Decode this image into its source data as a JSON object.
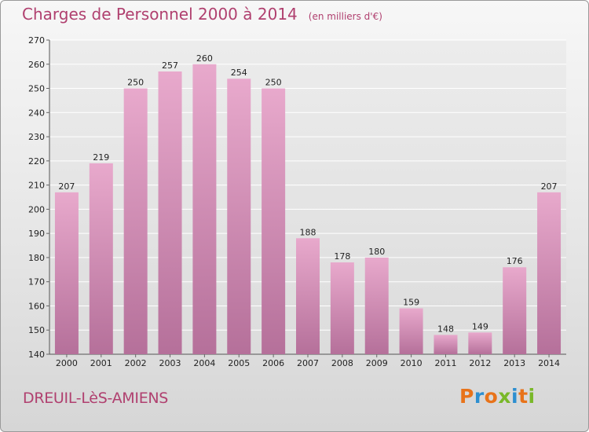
{
  "header": {
    "title": "Charges de Personnel 2000 à 2014",
    "subtitle": "(en milliers d'€)"
  },
  "footer": {
    "commune": "DREUIL-LèS-AMIENS",
    "logo_text": "Proxiti"
  },
  "chart_data": {
    "type": "bar",
    "title": "Charges de Personnel 2000 à 2014",
    "subtitle": "(en milliers d'€)",
    "categories": [
      "2000",
      "2001",
      "2002",
      "2003",
      "2004",
      "2005",
      "2006",
      "2007",
      "2008",
      "2009",
      "2010",
      "2011",
      "2012",
      "2013",
      "2014"
    ],
    "values": [
      207,
      219,
      250,
      257,
      260,
      254,
      250,
      188,
      178,
      180,
      159,
      148,
      149,
      176,
      207
    ],
    "data_labels": [
      "207",
      "219",
      "250",
      "257",
      "260",
      "254",
      "250",
      "188",
      "178",
      "180",
      "159",
      "148",
      "149",
      "176",
      "207"
    ],
    "y_ticks": [
      "140",
      "150",
      "160",
      "170",
      "180",
      "190",
      "200",
      "210",
      "220",
      "230",
      "240",
      "250",
      "260",
      "270"
    ],
    "ylim": [
      140,
      270
    ],
    "grid": true,
    "legend": "none",
    "colors": {
      "bar_top": "#e8a9cc",
      "bar_bottom": "#b5709a",
      "text": "#b0406f"
    }
  }
}
